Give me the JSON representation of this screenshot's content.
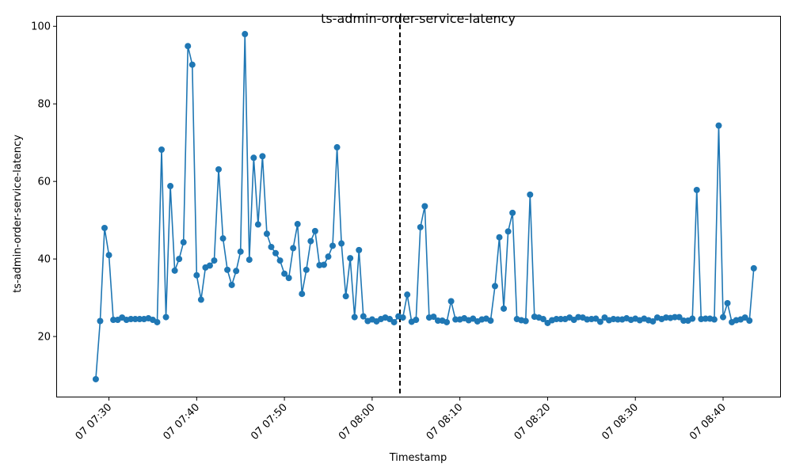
{
  "chart_data": {
    "type": "line",
    "title": "ts-admin-order-service-latency",
    "xlabel": "Timestamp",
    "ylabel": "ts-admin-order-service-latency",
    "x_tick_labels": [
      "07 07:30",
      "07 07:40",
      "07 07:50",
      "07 08:00",
      "07 08:10",
      "07 08:20",
      "07 08:30",
      "07 08:40"
    ],
    "y_ticks": [
      20,
      40,
      60,
      80,
      100
    ],
    "xlim": [
      "07 07:24:05",
      "07 08:46:30"
    ],
    "ylim": [
      4.5,
      102.5
    ],
    "grid": false,
    "vline": {
      "x": "07 08:03:10",
      "style": "dashed",
      "color": "#000000"
    },
    "series_color": "#1f77b4",
    "x_start": "07 07:28:30",
    "x_step": "30s",
    "values": [
      9.0,
      24.0,
      48.0,
      41.0,
      24.3,
      24.3,
      24.9,
      24.3,
      24.5,
      24.5,
      24.5,
      24.5,
      24.7,
      24.3,
      23.7,
      68.2,
      25.0,
      58.8,
      37.0,
      40.0,
      44.3,
      94.9,
      90.1,
      35.8,
      29.5,
      37.8,
      38.3,
      39.6,
      63.1,
      45.3,
      37.2,
      33.3,
      36.9,
      41.9,
      98.0,
      39.8,
      66.1,
      48.9,
      66.5,
      46.5,
      43.1,
      41.5,
      39.6,
      36.2,
      35.1,
      42.8,
      49.0,
      31.0,
      37.2,
      44.6,
      47.2,
      38.4,
      38.5,
      40.6,
      43.4,
      68.8,
      44.0,
      30.4,
      40.2,
      25.0,
      42.3,
      25.2,
      24.0,
      24.4,
      23.9,
      24.5,
      24.9,
      24.5,
      23.7,
      25.2,
      24.9,
      30.8,
      23.8,
      24.3,
      48.2,
      53.6,
      24.9,
      25.1,
      24.1,
      24.1,
      23.7,
      29.1,
      24.4,
      24.4,
      24.7,
      24.2,
      24.6,
      23.9,
      24.4,
      24.6,
      24.1,
      33.0,
      45.6,
      27.2,
      47.1,
      51.9,
      24.5,
      24.2,
      24.0,
      56.6,
      25.1,
      24.9,
      24.5,
      23.5,
      24.2,
      24.5,
      24.5,
      24.5,
      24.9,
      24.3,
      25.0,
      24.9,
      24.4,
      24.5,
      24.6,
      23.8,
      24.9,
      24.2,
      24.5,
      24.4,
      24.4,
      24.7,
      24.3,
      24.6,
      24.2,
      24.6,
      24.2,
      23.9,
      24.9,
      24.5,
      24.9,
      24.8,
      25.0,
      25.0,
      24.1,
      24.1,
      24.6,
      57.8,
      24.5,
      24.6,
      24.6,
      24.4,
      74.4,
      25.0,
      28.6,
      23.7,
      24.2,
      24.4,
      24.9,
      24.1,
      37.6
    ]
  }
}
